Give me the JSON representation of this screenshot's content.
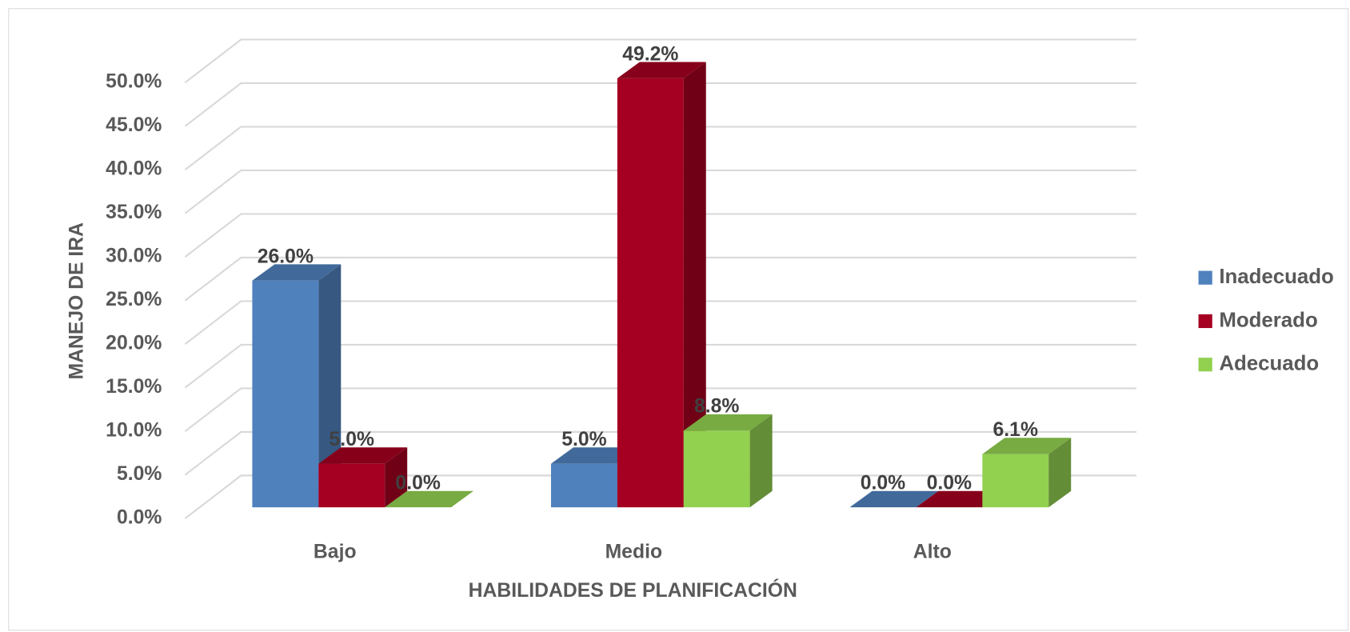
{
  "chart_data": {
    "type": "bar3d",
    "x_label": "HABILIDADES DE PLANIFICACIÓN",
    "y_label": "MANEJO DE IRA",
    "categories": [
      "Bajo",
      "Medio",
      "Alto"
    ],
    "series": [
      {
        "name": "Inadecuado",
        "color": "#4f81bd",
        "values": [
          26.0,
          5.0,
          0.0
        ],
        "value_labels": [
          "26.0%",
          "5.0%",
          "0.0%"
        ]
      },
      {
        "name": "Moderado",
        "color": "#a50021",
        "values": [
          5.0,
          49.2,
          0.0
        ],
        "value_labels": [
          "5.0%",
          "49.2%",
          "0.0%"
        ]
      },
      {
        "name": "Adecuado",
        "color": "#92d050",
        "values": [
          0.0,
          8.8,
          6.1
        ],
        "value_labels": [
          "0.0%",
          "8.8%",
          "6.1%"
        ]
      }
    ],
    "ylim": [
      0,
      50
    ],
    "yticks": [
      {
        "value": 0,
        "label": "0.0%"
      },
      {
        "value": 5,
        "label": "5.0%"
      },
      {
        "value": 10,
        "label": "10.0%"
      },
      {
        "value": 15,
        "label": "15.0%"
      },
      {
        "value": 20,
        "label": "20.0%"
      },
      {
        "value": 25,
        "label": "25.0%"
      },
      {
        "value": 30,
        "label": "30.0%"
      },
      {
        "value": 35,
        "label": "35.0%"
      },
      {
        "value": 40,
        "label": "40.0%"
      },
      {
        "value": 45,
        "label": "45.0%"
      },
      {
        "value": 50,
        "label": "50.0%"
      }
    ],
    "grid": true,
    "legend": "right"
  }
}
